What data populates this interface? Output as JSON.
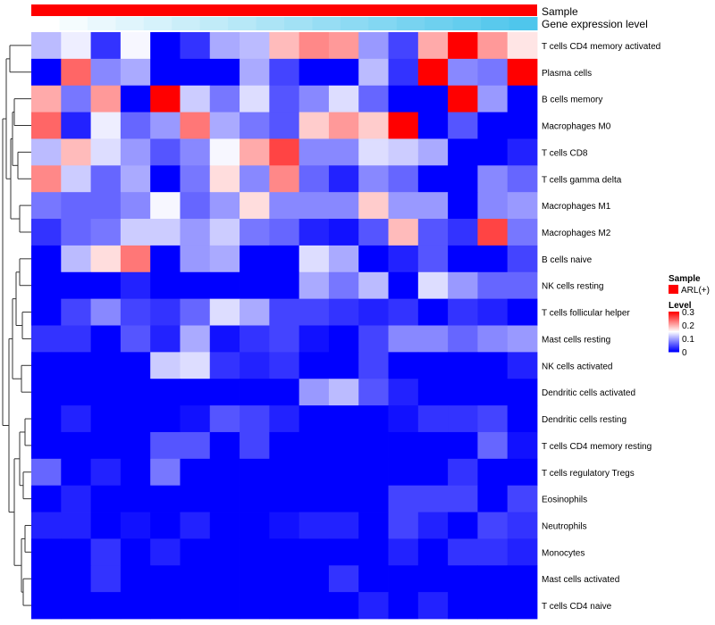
{
  "chart_data": {
    "type": "heatmap",
    "title": "",
    "annotation_labels": [
      "Sample",
      "Gene expression level"
    ],
    "legend": {
      "sample_title": "Sample",
      "sample_entry": "ARL(+)",
      "sample_color": "#ff0000",
      "level_title": "Level",
      "level_ticks": [
        "0.3",
        "0.2",
        "0.1",
        "0"
      ],
      "level_tick_values": [
        0.3,
        0.2,
        0.1,
        0
      ]
    },
    "color_scale": {
      "min": 0,
      "mid": 0.15,
      "max": 0.3,
      "low": "#0000ff",
      "midc": "#ffffff",
      "high": "#ff0000"
    },
    "gene_expression_levels": [
      0.0,
      0.05,
      0.1,
      0.15,
      0.2,
      0.25,
      0.3,
      0.35,
      0.4,
      0.45,
      0.5,
      0.55,
      0.6,
      0.65,
      0.7,
      0.75,
      0.8,
      0.85
    ],
    "gene_expression_colors": {
      "low": "#ffffff",
      "high": "#4fc6ec"
    },
    "rows": [
      "T cells CD4 memory activated",
      "Plasma cells",
      "B cells memory",
      "Macrophages M0",
      "T cells CD8",
      "T cells gamma delta",
      "Macrophages M1",
      "Macrophages M2",
      "B cells naive",
      "NK cells resting",
      "T cells follicular helper",
      "Mast cells resting",
      "NK cells activated",
      "Dendritic cells activated",
      "Dendritic cells resting",
      "T cells CD4 memory resting",
      "T cells regulatory  Tregs",
      "Eosinophils",
      "Neutrophils",
      "Monocytes",
      "Mast cells activated",
      "T cells CD4 naive"
    ],
    "values": [
      [
        0.11,
        0.14,
        0.03,
        0.145,
        0.0,
        0.03,
        0.1,
        0.11,
        0.19,
        0.22,
        0.21,
        0.09,
        0.04,
        0.2,
        0.3,
        0.21,
        0.165
      ],
      [
        0.0,
        0.24,
        0.08,
        0.1,
        0.0,
        0.0,
        0.0,
        0.1,
        0.04,
        0.0,
        0.0,
        0.11,
        0.03,
        0.3,
        0.08,
        0.07,
        0.3
      ],
      [
        0.2,
        0.07,
        0.21,
        0.0,
        0.3,
        0.12,
        0.07,
        0.13,
        0.05,
        0.08,
        0.13,
        0.06,
        0.0,
        0.0,
        0.3,
        0.09,
        0.0
      ],
      [
        0.24,
        0.02,
        0.14,
        0.06,
        0.09,
        0.23,
        0.1,
        0.07,
        0.05,
        0.18,
        0.21,
        0.18,
        0.3,
        0.0,
        0.05,
        0.0,
        0.0
      ],
      [
        0.11,
        0.19,
        0.13,
        0.09,
        0.05,
        0.08,
        0.145,
        0.2,
        0.26,
        0.08,
        0.08,
        0.13,
        0.12,
        0.1,
        0.0,
        0.0,
        0.02
      ],
      [
        0.22,
        0.12,
        0.06,
        0.1,
        0.0,
        0.07,
        0.17,
        0.08,
        0.22,
        0.06,
        0.02,
        0.08,
        0.06,
        0.0,
        0.0,
        0.08,
        0.06
      ],
      [
        0.07,
        0.06,
        0.06,
        0.08,
        0.145,
        0.06,
        0.09,
        0.17,
        0.08,
        0.08,
        0.08,
        0.18,
        0.09,
        0.09,
        0.0,
        0.08,
        0.09
      ],
      [
        0.03,
        0.06,
        0.07,
        0.12,
        0.12,
        0.09,
        0.12,
        0.07,
        0.06,
        0.02,
        0.01,
        0.05,
        0.19,
        0.05,
        0.03,
        0.26,
        0.07
      ],
      [
        0.0,
        0.11,
        0.17,
        0.23,
        0.0,
        0.09,
        0.1,
        0.0,
        0.0,
        0.13,
        0.1,
        0.0,
        0.02,
        0.05,
        0.0,
        0.0,
        0.04
      ],
      [
        0.0,
        0.0,
        0.0,
        0.02,
        0.0,
        0.0,
        0.0,
        0.0,
        0.0,
        0.1,
        0.07,
        0.11,
        0.0,
        0.13,
        0.09,
        0.06,
        0.06
      ],
      [
        0.0,
        0.04,
        0.08,
        0.04,
        0.03,
        0.06,
        0.13,
        0.1,
        0.04,
        0.04,
        0.03,
        0.02,
        0.03,
        0.0,
        0.03,
        0.02,
        0.0
      ],
      [
        0.03,
        0.03,
        0.0,
        0.05,
        0.02,
        0.1,
        0.01,
        0.03,
        0.04,
        0.01,
        0.0,
        0.04,
        0.08,
        0.08,
        0.06,
        0.08,
        0.09
      ],
      [
        0.0,
        0.0,
        0.0,
        0.0,
        0.12,
        0.13,
        0.03,
        0.02,
        0.03,
        0.0,
        0.0,
        0.04,
        0.0,
        0.0,
        0.0,
        0.0,
        0.02
      ],
      [
        0.0,
        0.0,
        0.0,
        0.0,
        0.0,
        0.0,
        0.0,
        0.0,
        0.0,
        0.09,
        0.11,
        0.05,
        0.02,
        0.0,
        0.0,
        0.0,
        0.0
      ],
      [
        0.0,
        0.02,
        0.0,
        0.0,
        0.0,
        0.01,
        0.05,
        0.04,
        0.02,
        0.0,
        0.0,
        0.0,
        0.01,
        0.03,
        0.03,
        0.04,
        0.0
      ],
      [
        0.0,
        0.0,
        0.0,
        0.0,
        0.05,
        0.05,
        0.0,
        0.04,
        0.0,
        0.0,
        0.0,
        0.0,
        0.0,
        0.0,
        0.0,
        0.06,
        0.01
      ],
      [
        0.06,
        0.0,
        0.02,
        0.0,
        0.07,
        0.0,
        0.0,
        0.0,
        0.0,
        0.0,
        0.0,
        0.0,
        0.0,
        0.0,
        0.03,
        0.0,
        0.0
      ],
      [
        0.0,
        0.02,
        0.0,
        0.0,
        0.0,
        0.0,
        0.0,
        0.0,
        0.0,
        0.0,
        0.0,
        0.0,
        0.04,
        0.04,
        0.04,
        0.0,
        0.04
      ],
      [
        0.02,
        0.02,
        0.0,
        0.01,
        0.0,
        0.02,
        0.0,
        0.0,
        0.01,
        0.02,
        0.02,
        0.0,
        0.04,
        0.02,
        0.0,
        0.04,
        0.03
      ],
      [
        0.0,
        0.0,
        0.03,
        0.0,
        0.02,
        0.0,
        0.0,
        0.0,
        0.0,
        0.0,
        0.0,
        0.0,
        0.02,
        0.0,
        0.03,
        0.03,
        0.02
      ],
      [
        0.0,
        0.0,
        0.03,
        0.0,
        0.0,
        0.0,
        0.0,
        0.0,
        0.0,
        0.0,
        0.03,
        0.0,
        0.0,
        0.0,
        0.0,
        0.0,
        0.0
      ],
      [
        0.0,
        0.0,
        0.0,
        0.0,
        0.0,
        0.0,
        0.0,
        0.0,
        0.0,
        0.0,
        0.0,
        0.02,
        0.0,
        0.02,
        0.0,
        0.0,
        0.0
      ]
    ]
  }
}
